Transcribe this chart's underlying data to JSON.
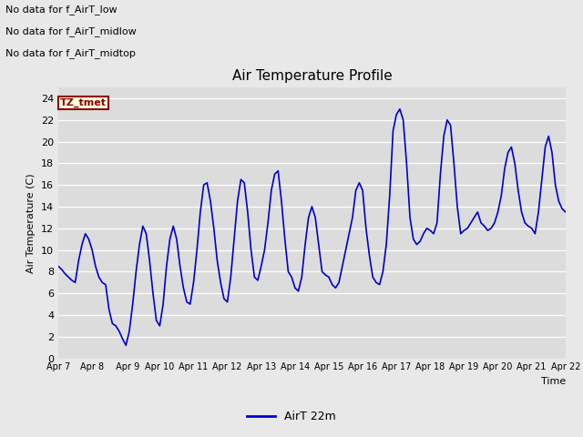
{
  "title": "Air Temperature Profile",
  "xlabel": "Time",
  "ylabel": "Air Temperature (C)",
  "ylim": [
    0,
    25
  ],
  "yticks": [
    0,
    2,
    4,
    6,
    8,
    10,
    12,
    14,
    16,
    18,
    20,
    22,
    24
  ],
  "line_color": "#0000CC",
  "line_width": 1.2,
  "bg_color": "#E8E8E8",
  "plot_bg_color": "#DCDCDC",
  "no_data_texts": [
    "No data for f_AirT_low",
    "No data for f_AirT_midlow",
    "No data for f_AirT_midtop"
  ],
  "tz_label": "TZ_tmet",
  "legend_label": "AirT 22m",
  "xtick_labels": [
    "Apr 7",
    "Apr 8",
    " Apr 9",
    "Apr 10",
    "Apr 11",
    "Apr 12",
    "Apr 13",
    "Apr 14",
    "Apr 15",
    "Apr 16",
    "Apr 17",
    "Apr 18",
    "Apr 19",
    "Apr 20",
    "Apr 21",
    "Apr 22"
  ],
  "x_values": [
    7.0,
    7.1,
    7.2,
    7.3,
    7.4,
    7.5,
    7.6,
    7.7,
    7.8,
    7.9,
    8.0,
    8.1,
    8.2,
    8.3,
    8.4,
    8.5,
    8.6,
    8.7,
    8.8,
    8.9,
    9.0,
    9.1,
    9.2,
    9.3,
    9.4,
    9.5,
    9.6,
    9.7,
    9.8,
    9.9,
    10.0,
    10.1,
    10.2,
    10.3,
    10.4,
    10.5,
    10.6,
    10.7,
    10.8,
    10.9,
    11.0,
    11.1,
    11.2,
    11.3,
    11.4,
    11.5,
    11.6,
    11.7,
    11.8,
    11.9,
    12.0,
    12.1,
    12.2,
    12.3,
    12.4,
    12.5,
    12.6,
    12.7,
    12.8,
    12.9,
    13.0,
    13.1,
    13.2,
    13.3,
    13.4,
    13.5,
    13.6,
    13.7,
    13.8,
    13.9,
    14.0,
    14.1,
    14.2,
    14.3,
    14.4,
    14.5,
    14.6,
    14.7,
    14.8,
    14.9,
    15.0,
    15.1,
    15.2,
    15.3,
    15.4,
    15.5,
    15.6,
    15.7,
    15.8,
    15.9,
    16.0,
    16.1,
    16.2,
    16.3,
    16.4,
    16.5,
    16.6,
    16.7,
    16.8,
    16.9,
    17.0,
    17.1,
    17.2,
    17.3,
    17.4,
    17.5,
    17.6,
    17.7,
    17.8,
    17.9,
    18.0,
    18.1,
    18.2,
    18.3,
    18.4,
    18.5,
    18.6,
    18.7,
    18.8,
    18.9,
    19.0,
    19.1,
    19.2,
    19.3,
    19.4,
    19.5,
    19.6,
    19.7,
    19.8,
    19.9,
    20.0,
    20.1,
    20.2,
    20.3,
    20.4,
    20.5,
    20.6,
    20.7,
    20.8,
    20.9,
    21.0,
    21.1,
    21.2,
    21.3,
    21.4,
    21.5,
    21.6,
    21.7,
    21.8,
    21.9,
    22.0
  ],
  "y_values": [
    8.5,
    8.2,
    7.8,
    7.5,
    7.2,
    7.0,
    9.0,
    10.5,
    11.5,
    11.0,
    10.0,
    8.5,
    7.5,
    7.0,
    6.8,
    4.5,
    3.2,
    3.0,
    2.5,
    1.8,
    1.2,
    2.5,
    5.0,
    8.0,
    10.5,
    12.2,
    11.5,
    9.0,
    6.0,
    3.5,
    3.0,
    5.0,
    8.5,
    11.0,
    12.2,
    11.0,
    8.5,
    6.5,
    5.2,
    5.0,
    7.0,
    10.0,
    13.5,
    16.0,
    16.2,
    14.5,
    12.0,
    9.0,
    7.0,
    5.5,
    5.2,
    7.5,
    11.0,
    14.5,
    16.5,
    16.2,
    13.5,
    10.0,
    7.5,
    7.2,
    8.5,
    10.0,
    12.5,
    15.5,
    17.0,
    17.3,
    14.5,
    11.0,
    8.0,
    7.5,
    6.5,
    6.2,
    7.5,
    10.5,
    13.0,
    14.0,
    13.0,
    10.5,
    8.0,
    7.7,
    7.5,
    6.8,
    6.5,
    7.0,
    8.5,
    10.0,
    11.5,
    13.0,
    15.5,
    16.2,
    15.5,
    12.0,
    9.5,
    7.5,
    7.0,
    6.8,
    8.0,
    10.5,
    15.0,
    21.0,
    22.5,
    23.0,
    22.0,
    18.0,
    13.0,
    11.0,
    10.5,
    10.8,
    11.5,
    12.0,
    11.8,
    11.5,
    12.5,
    17.0,
    20.5,
    22.0,
    21.5,
    18.0,
    14.0,
    11.5,
    11.8,
    12.0,
    12.5,
    13.0,
    13.5,
    12.5,
    12.2,
    11.8,
    12.0,
    12.5,
    13.5,
    15.0,
    17.5,
    19.0,
    19.5,
    18.0,
    15.5,
    13.5,
    12.5,
    12.2,
    12.0,
    11.5,
    13.5,
    16.5,
    19.5,
    20.5,
    19.0,
    16.0,
    14.5,
    13.8,
    13.5
  ]
}
